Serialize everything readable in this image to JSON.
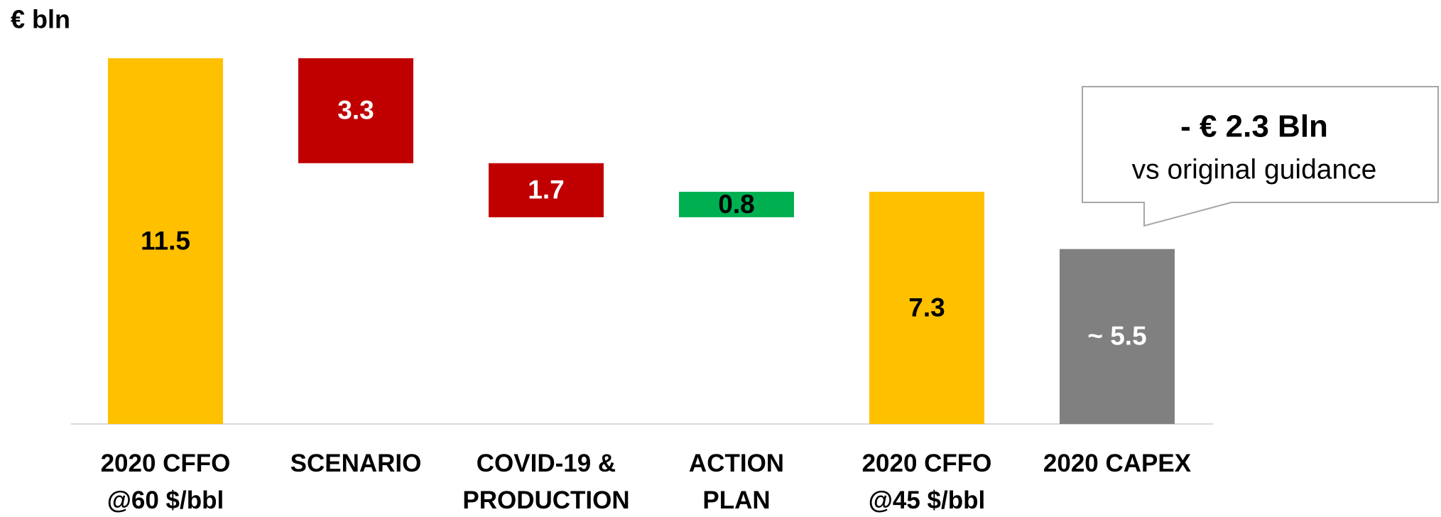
{
  "chart_data": {
    "type": "waterfall",
    "y_label": "€ bln",
    "categories": [
      "2020 CFFO\n@60 $/bbl",
      "SCENARIO",
      "COVID-19 &\nPRODUCTION",
      "ACTION\nPLAN",
      "2020 CFFO\n@45 $/bbl",
      "2020 CAPEX"
    ],
    "values": [
      11.5,
      -3.3,
      -1.7,
      0.8,
      7.3,
      5.5
    ],
    "value_labels": [
      "11.5",
      "3.3",
      "1.7",
      "0.8",
      "7.3",
      "~ 5.5"
    ],
    "measure": [
      "absolute",
      "relative",
      "relative",
      "relative",
      "absolute",
      "absolute"
    ],
    "colors": [
      "#FFC000",
      "#C00000",
      "#C00000",
      "#00B050",
      "#FFC000",
      "#808080"
    ],
    "value_label_colors": [
      "#000000",
      "#ffffff",
      "#ffffff",
      "#000000",
      "#000000",
      "#ffffff"
    ],
    "ylim": [
      0,
      11.5
    ],
    "annotation": {
      "title": "- € 2.3 Bln",
      "text": "vs original guidance"
    }
  }
}
